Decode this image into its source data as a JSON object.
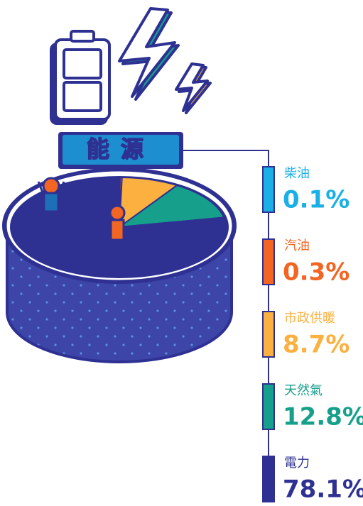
{
  "chart_data": {
    "type": "pie",
    "title": "能源",
    "categories": [
      "柴油",
      "汽油",
      "市政供暖",
      "天然氣",
      "電力"
    ],
    "values": [
      0.1,
      0.3,
      8.7,
      12.8,
      78.1
    ],
    "value_labels": [
      "0.1%",
      "0.3%",
      "8.7%",
      "12.8%",
      "78.1%"
    ],
    "colors": [
      "#1ab0e6",
      "#f26522",
      "#fbb040",
      "#16a08c",
      "#2e3192"
    ]
  }
}
